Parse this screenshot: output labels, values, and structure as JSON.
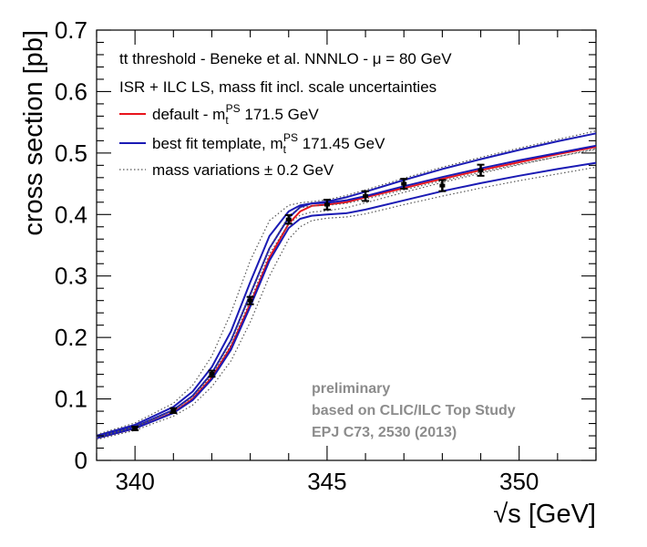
{
  "chart_data": {
    "type": "line",
    "title": "",
    "xlabel": "√s [GeV]",
    "ylabel": "cross section [pb]",
    "xlim": [
      339,
      352
    ],
    "ylim": [
      0,
      0.7
    ],
    "x_ticks": [
      "340",
      "345",
      "350"
    ],
    "y_ticks": [
      "0",
      "0.1",
      "0.2",
      "0.3",
      "0.4",
      "0.5",
      "0.6",
      "0.7"
    ],
    "grid": false,
    "legend": {
      "placement": "top-left",
      "header_lines": [
        "tt threshold - Beneke et al. NNNLO - μ = 80 GeV",
        "ISR + ILC LS, mass fit incl. scale uncertainties"
      ],
      "entries": [
        {
          "prefix": "default - m",
          "sub": "t",
          "sup": "PS",
          "suffix": " 171.5 GeV",
          "color": "#e8141c",
          "style": "solid"
        },
        {
          "prefix": "best fit template,  m",
          "sub": "t",
          "sup": "PS",
          "suffix": " 171.45 GeV",
          "color": "#1a1ab4",
          "style": "solid"
        },
        {
          "prefix": "mass variations ± 0.2 GeV",
          "sub": "",
          "sup": "",
          "suffix": "",
          "color": "#555555",
          "style": "dotted"
        }
      ]
    },
    "annotation": [
      "preliminary",
      "based on CLIC/ILC Top Study",
      "EPJ C73, 2530 (2013)"
    ],
    "series": [
      {
        "name": "default - m_t^PS 171.5 GeV",
        "color": "#e8141c",
        "style": "solid",
        "x": [
          339,
          340,
          341,
          341.5,
          342,
          342.5,
          343,
          343.5,
          344,
          344.3,
          344.6,
          345,
          345.5,
          346,
          347,
          348,
          349,
          350,
          351,
          352
        ],
        "y": [
          0.036,
          0.052,
          0.078,
          0.1,
          0.135,
          0.185,
          0.255,
          0.33,
          0.385,
          0.405,
          0.414,
          0.416,
          0.42,
          0.428,
          0.443,
          0.458,
          0.472,
          0.485,
          0.498,
          0.51
        ]
      },
      {
        "name": "best fit template,  m_t^PS 171.45 GeV",
        "color": "#1a1ab4",
        "style": "solid",
        "x": [
          339,
          340,
          341,
          341.5,
          342,
          342.5,
          343,
          343.5,
          344,
          344.3,
          344.6,
          345,
          345.5,
          346,
          347,
          348,
          349,
          350,
          351,
          352
        ],
        "y": [
          0.038,
          0.055,
          0.082,
          0.105,
          0.142,
          0.195,
          0.27,
          0.345,
          0.395,
          0.412,
          0.418,
          0.419,
          0.423,
          0.43,
          0.446,
          0.461,
          0.475,
          0.488,
          0.5,
          0.512
        ]
      },
      {
        "name": "best fit band upper",
        "color": "#1a1ab4",
        "style": "solid",
        "x": [
          339,
          340,
          341,
          341.5,
          342,
          342.5,
          343,
          343.5,
          344,
          344.3,
          344.6,
          345,
          345.5,
          346,
          347,
          348,
          349,
          350,
          351,
          352
        ],
        "y": [
          0.04,
          0.058,
          0.087,
          0.112,
          0.152,
          0.21,
          0.29,
          0.365,
          0.405,
          0.415,
          0.418,
          0.421,
          0.428,
          0.437,
          0.456,
          0.474,
          0.49,
          0.505,
          0.519,
          0.532
        ]
      },
      {
        "name": "best fit band lower",
        "color": "#1a1ab4",
        "style": "solid",
        "x": [
          339,
          340,
          341,
          341.5,
          342,
          342.5,
          343,
          343.5,
          344,
          344.3,
          344.6,
          345,
          345.5,
          346,
          347,
          348,
          349,
          350,
          351,
          352
        ],
        "y": [
          0.036,
          0.052,
          0.077,
          0.098,
          0.132,
          0.18,
          0.25,
          0.325,
          0.378,
          0.393,
          0.398,
          0.4,
          0.402,
          0.408,
          0.423,
          0.438,
          0.451,
          0.463,
          0.474,
          0.484
        ]
      },
      {
        "name": "mass variation +0.2 GeV upper",
        "color": "#555555",
        "style": "dotted",
        "x": [
          339,
          340,
          341,
          341.5,
          342,
          342.5,
          343,
          343.5,
          344,
          344.3,
          344.6,
          345,
          345.5,
          346,
          347,
          348,
          349,
          350,
          351,
          352
        ],
        "y": [
          0.042,
          0.061,
          0.093,
          0.122,
          0.17,
          0.24,
          0.325,
          0.39,
          0.415,
          0.419,
          0.421,
          0.424,
          0.431,
          0.44,
          0.459,
          0.477,
          0.493,
          0.508,
          0.522,
          0.536
        ]
      },
      {
        "name": "mass variation +0.2 GeV lower",
        "color": "#555555",
        "style": "dotted",
        "x": [
          339,
          340,
          341,
          341.5,
          342,
          342.5,
          343,
          343.5,
          344,
          344.3,
          344.6,
          345,
          345.5,
          346,
          347,
          348,
          349,
          350,
          351,
          352
        ],
        "y": [
          0.037,
          0.054,
          0.081,
          0.104,
          0.142,
          0.195,
          0.27,
          0.345,
          0.398,
          0.411,
          0.414,
          0.415,
          0.418,
          0.425,
          0.44,
          0.455,
          0.469,
          0.482,
          0.494,
          0.506
        ]
      },
      {
        "name": "mass variation -0.2 GeV upper",
        "color": "#555555",
        "style": "dotted",
        "x": [
          339,
          340,
          341,
          341.5,
          342,
          342.5,
          343,
          343.5,
          344,
          344.3,
          344.6,
          345,
          345.5,
          346,
          347,
          348,
          349,
          350,
          351,
          352
        ],
        "y": [
          0.038,
          0.055,
          0.081,
          0.103,
          0.138,
          0.188,
          0.26,
          0.336,
          0.385,
          0.399,
          0.404,
          0.406,
          0.411,
          0.419,
          0.436,
          0.452,
          0.467,
          0.481,
          0.494,
          0.507
        ]
      },
      {
        "name": "mass variation -0.2 GeV lower",
        "color": "#555555",
        "style": "dotted",
        "x": [
          339,
          340,
          341,
          341.5,
          342,
          342.5,
          343,
          343.5,
          344,
          344.3,
          344.6,
          345,
          345.5,
          346,
          347,
          348,
          349,
          350,
          351,
          352
        ],
        "y": [
          0.034,
          0.049,
          0.072,
          0.09,
          0.12,
          0.162,
          0.225,
          0.3,
          0.36,
          0.38,
          0.39,
          0.394,
          0.396,
          0.401,
          0.416,
          0.43,
          0.443,
          0.455,
          0.466,
          0.477
        ]
      }
    ],
    "points": {
      "name": "data",
      "color": "#000000",
      "x": [
        340,
        341,
        342,
        343,
        344,
        345,
        346,
        347,
        348,
        349
      ],
      "y": [
        0.052,
        0.081,
        0.141,
        0.26,
        0.392,
        0.416,
        0.43,
        0.45,
        0.447,
        0.472
      ],
      "err": [
        0.003,
        0.004,
        0.005,
        0.006,
        0.007,
        0.008,
        0.008,
        0.008,
        0.009,
        0.009
      ]
    }
  }
}
